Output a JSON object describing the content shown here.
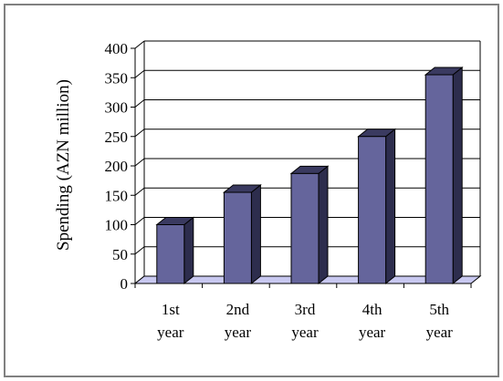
{
  "chart_data": {
    "type": "bar",
    "title": "",
    "xlabel": "",
    "ylabel": "Spending (AZN million)",
    "categories": [
      [
        "1st",
        "year"
      ],
      [
        "2nd",
        "year"
      ],
      [
        "3rd",
        "year"
      ],
      [
        "4th",
        "year"
      ],
      [
        "5th",
        "year"
      ]
    ],
    "values": [
      100,
      155,
      187,
      250,
      355
    ],
    "ylim": [
      0,
      400
    ],
    "yticks": [
      0,
      50,
      100,
      150,
      200,
      250,
      300,
      350,
      400
    ],
    "grid": true,
    "legend": "none",
    "bar_style": "3d",
    "colors": {
      "bar_front": "#65659c",
      "bar_side": "#2d2d4d",
      "bar_top": "#3a3a60",
      "floor": "#c8c8f0",
      "grid": "#000000",
      "frame": "#808080"
    }
  }
}
